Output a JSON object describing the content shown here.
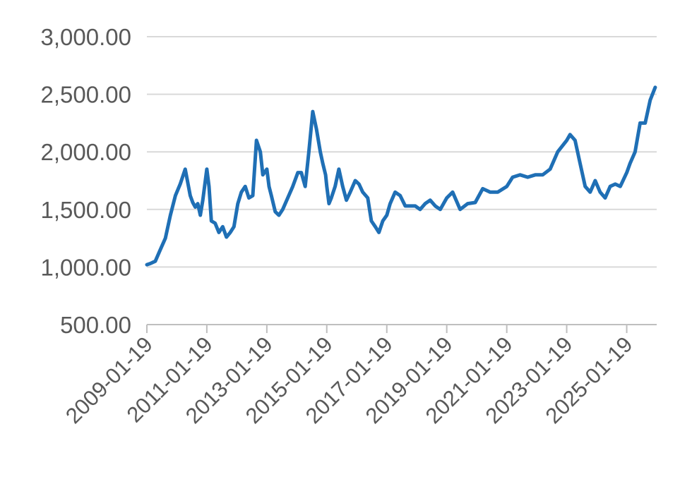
{
  "chart_data": {
    "type": "line",
    "title": "",
    "xlabel": "",
    "ylabel": "",
    "ylim": [
      500,
      3000
    ],
    "yticks": [
      "500.00",
      "1,000.00",
      "1,500.00",
      "2,000.00",
      "2,500.00",
      "3,000.00"
    ],
    "xticks": [
      "2009-01-19",
      "2011-01-19",
      "2013-01-19",
      "2015-01-19",
      "2017-01-19",
      "2019-01-19",
      "2021-01-19",
      "2023-01-19",
      "2025-01-19"
    ],
    "grid": true,
    "legend": "none",
    "colors": {
      "line": "#1f6fb5",
      "grid": "#d9d9d9",
      "axis": "#bfbfbf",
      "text": "#595959"
    },
    "series": [
      {
        "x": [
          "2009-01-19",
          "2009-03-01",
          "2009-05-01",
          "2009-07-01",
          "2009-09-01",
          "2009-11-01",
          "2010-01-01",
          "2010-03-01",
          "2010-05-01",
          "2010-07-01",
          "2010-08-01",
          "2010-09-01",
          "2010-10-01",
          "2010-11-01",
          "2010-12-01",
          "2011-01-19",
          "2011-02-15",
          "2011-03-15",
          "2011-05-01",
          "2011-06-15",
          "2011-08-01",
          "2011-09-15",
          "2011-11-01",
          "2011-12-15",
          "2012-02-01",
          "2012-03-15",
          "2012-05-01",
          "2012-06-15",
          "2012-08-01",
          "2012-09-15",
          "2012-11-01",
          "2012-12-01",
          "2013-01-19",
          "2013-02-15",
          "2013-03-15",
          "2013-05-01",
          "2013-06-15",
          "2013-08-01",
          "2013-10-01",
          "2013-12-01",
          "2014-02-01",
          "2014-03-15",
          "2014-05-01",
          "2014-06-15",
          "2014-08-01",
          "2014-09-15",
          "2014-11-01",
          "2014-12-01",
          "2015-01-05",
          "2015-01-19",
          "2015-02-15",
          "2015-03-15",
          "2015-05-01",
          "2015-06-15",
          "2015-08-01",
          "2015-09-15",
          "2015-11-01",
          "2016-01-01",
          "2016-02-15",
          "2016-04-01",
          "2016-06-01",
          "2016-07-15",
          "2016-09-01",
          "2016-10-15",
          "2016-12-01",
          "2017-01-19",
          "2017-03-01",
          "2017-05-01",
          "2017-07-01",
          "2017-09-01",
          "2017-11-01",
          "2018-01-01",
          "2018-03-01",
          "2018-05-01",
          "2018-07-01",
          "2018-09-01",
          "2018-11-01",
          "2019-01-19",
          "2019-04-01",
          "2019-07-01",
          "2019-10-01",
          "2020-01-01",
          "2020-04-01",
          "2020-07-01",
          "2020-10-01",
          "2021-01-19",
          "2021-04-01",
          "2021-07-01",
          "2021-10-01",
          "2022-01-01",
          "2022-04-01",
          "2022-07-01",
          "2022-10-01",
          "2023-01-19",
          "2023-03-01",
          "2023-05-01",
          "2023-07-01",
          "2023-09-01",
          "2023-11-01",
          "2024-01-01",
          "2024-03-01",
          "2024-05-01",
          "2024-07-01",
          "2024-09-01",
          "2024-11-01",
          "2025-01-19",
          "2025-03-01",
          "2025-05-01",
          "2025-07-01",
          "2025-09-01",
          "2025-11-01",
          "2026-01-01"
        ],
        "y": [
          1020,
          1030,
          1050,
          1150,
          1250,
          1450,
          1620,
          1720,
          1850,
          1620,
          1560,
          1520,
          1550,
          1450,
          1580,
          1850,
          1700,
          1400,
          1380,
          1300,
          1350,
          1260,
          1300,
          1350,
          1550,
          1650,
          1700,
          1600,
          1620,
          2100,
          2000,
          1800,
          1850,
          1700,
          1620,
          1480,
          1450,
          1500,
          1600,
          1700,
          1820,
          1820,
          1700,
          2000,
          2350,
          2200,
          2000,
          1900,
          1800,
          1700,
          1550,
          1600,
          1700,
          1850,
          1700,
          1580,
          1650,
          1750,
          1720,
          1650,
          1600,
          1400,
          1350,
          1300,
          1400,
          1450,
          1550,
          1650,
          1620,
          1530,
          1530,
          1530,
          1500,
          1550,
          1580,
          1530,
          1500,
          1600,
          1650,
          1500,
          1550,
          1560,
          1680,
          1650,
          1650,
          1700,
          1780,
          1800,
          1780,
          1800,
          1800,
          1850,
          2000,
          2100,
          2150,
          2100,
          1900,
          1700,
          1650,
          1750,
          1650,
          1600,
          1700,
          1720,
          1700,
          1820,
          1900,
          2000,
          2250,
          2250,
          2450,
          2560
        ]
      }
    ]
  }
}
